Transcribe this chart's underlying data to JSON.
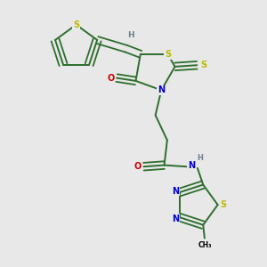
{
  "background_color": "#e8e8e8",
  "atom_colors": {
    "S": "#bbbb00",
    "N": "#0000cc",
    "O": "#cc0000",
    "C": "#000000",
    "H": "#708090"
  },
  "bond_color": "#2d6e2d",
  "figsize": [
    3.0,
    3.0
  ],
  "dpi": 100
}
